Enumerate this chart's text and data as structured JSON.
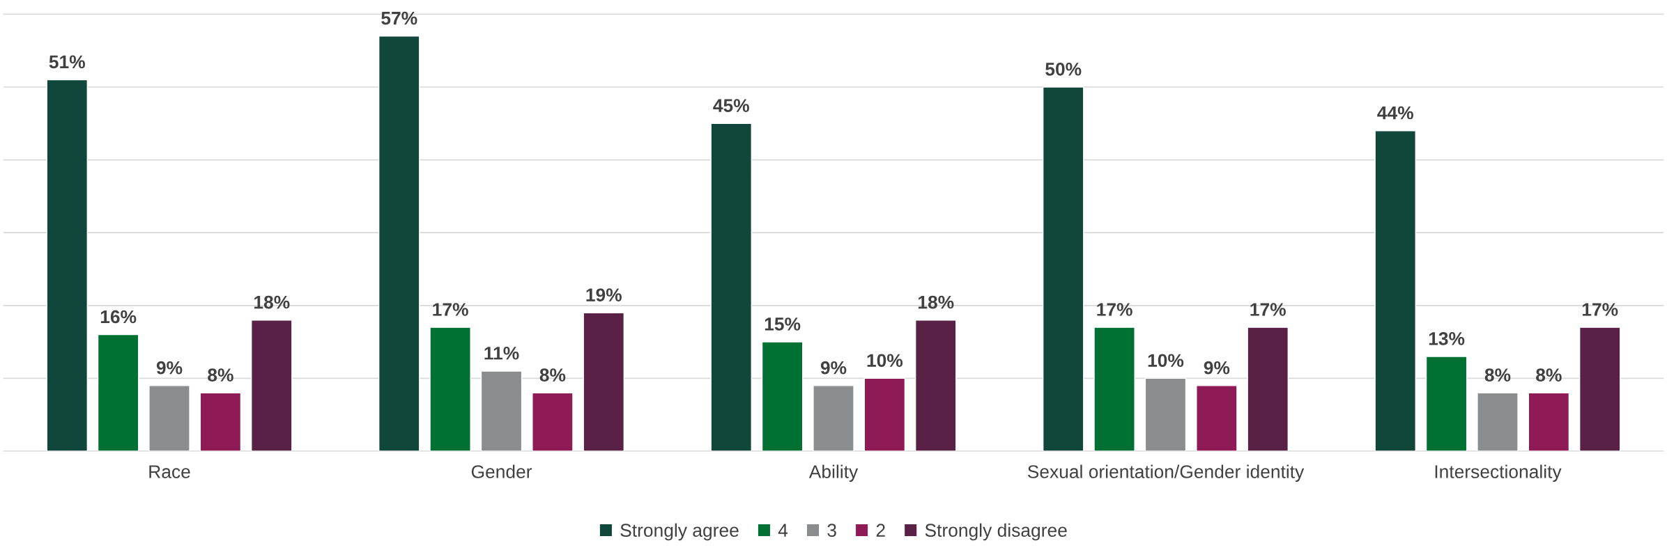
{
  "chart_data": {
    "type": "bar",
    "categories": [
      "Race",
      "Gender",
      "Ability",
      "Sexual orientation/Gender identity",
      "Intersectionality"
    ],
    "series": [
      {
        "name": "Strongly agree",
        "color": "#10473a",
        "values": [
          51,
          57,
          45,
          50,
          44
        ],
        "value_labels": [
          "51%",
          "57%",
          "45%",
          "50%",
          "44%"
        ]
      },
      {
        "name": "4",
        "color": "#007033",
        "values": [
          16,
          17,
          15,
          17,
          13
        ],
        "value_labels": [
          "16%",
          "17%",
          "15%",
          "17%",
          "13%"
        ]
      },
      {
        "name": "3",
        "color": "#8a8c8e",
        "values": [
          9,
          11,
          9,
          10,
          8
        ],
        "value_labels": [
          "9%",
          "11%",
          "9%",
          "10%",
          "8%"
        ]
      },
      {
        "name": "2",
        "color": "#8e1b55",
        "values": [
          8,
          8,
          10,
          9,
          8
        ],
        "value_labels": [
          "8%",
          "8%",
          "10%",
          "9%",
          "8%"
        ]
      },
      {
        "name": "Strongly disagree",
        "color": "#582145",
        "values": [
          18,
          19,
          18,
          17,
          17
        ],
        "value_labels": [
          "18%",
          "19%",
          "18%",
          "17%",
          "17%"
        ]
      }
    ],
    "grid": "y",
    "legend": "bottom",
    "tick_labels": "x"
  }
}
